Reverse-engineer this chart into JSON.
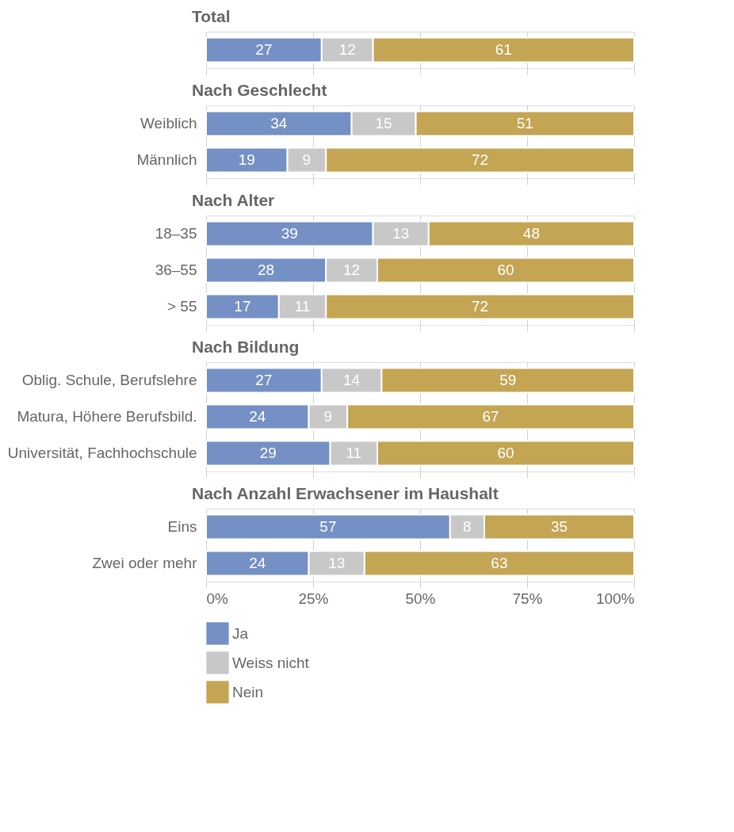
{
  "chart_data": [
    {
      "type": "bar",
      "title": "Total",
      "orientation": "horizontal",
      "stacked": true,
      "categories": [
        null
      ],
      "series": [
        {
          "color": "#7490c4",
          "values": [
            27
          ]
        },
        {
          "color": "#c8c8c8",
          "values": [
            12
          ]
        },
        {
          "color": "#c4a553",
          "values": [
            61
          ]
        }
      ],
      "xlim": [
        0,
        100
      ],
      "xticks": [
        {
          "value": 0,
          "label": null
        },
        {
          "value": 25,
          "label": null
        },
        {
          "value": 50,
          "label": null
        },
        {
          "value": 75,
          "label": null
        },
        {
          "value": 100,
          "label": null
        }
      ],
      "grid": true,
      "data_labels": true,
      "legend": false
    },
    {
      "type": "bar",
      "title": "Nach Geschlecht",
      "orientation": "horizontal",
      "stacked": true,
      "categories": [
        "Weiblich",
        "Männlich"
      ],
      "series": [
        {
          "color": "#7490c4",
          "values": [
            34,
            19
          ]
        },
        {
          "color": "#c8c8c8",
          "values": [
            15,
            9
          ]
        },
        {
          "color": "#c4a553",
          "values": [
            51,
            72
          ]
        }
      ],
      "xlim": [
        0,
        100
      ],
      "xticks": [
        {
          "value": 0,
          "label": null
        },
        {
          "value": 25,
          "label": null
        },
        {
          "value": 50,
          "label": null
        },
        {
          "value": 75,
          "label": null
        },
        {
          "value": 100,
          "label": null
        }
      ],
      "grid": true,
      "data_labels": true,
      "legend": false
    },
    {
      "type": "bar",
      "title": "Nach Alter",
      "orientation": "horizontal",
      "stacked": true,
      "categories": [
        "18–35",
        "36–55",
        "> 55"
      ],
      "series": [
        {
          "color": "#7490c4",
          "values": [
            39,
            28,
            17
          ]
        },
        {
          "color": "#c8c8c8",
          "values": [
            13,
            12,
            11
          ]
        },
        {
          "color": "#c4a553",
          "values": [
            48,
            60,
            72
          ]
        }
      ],
      "xlim": [
        0,
        100
      ],
      "xticks": [
        {
          "value": 0,
          "label": null
        },
        {
          "value": 25,
          "label": null
        },
        {
          "value": 50,
          "label": null
        },
        {
          "value": 75,
          "label": null
        },
        {
          "value": 100,
          "label": null
        }
      ],
      "grid": true,
      "data_labels": true,
      "legend": false
    },
    {
      "type": "bar",
      "title": "Nach Bildung",
      "orientation": "horizontal",
      "stacked": true,
      "categories": [
        "Oblig. Schule, Berufslehre",
        "Matura, Höhere Berufsbild.",
        "Universität, Fachhochschule"
      ],
      "series": [
        {
          "color": "#7490c4",
          "values": [
            27,
            24,
            29
          ]
        },
        {
          "color": "#c8c8c8",
          "values": [
            14,
            9,
            11
          ]
        },
        {
          "color": "#c4a553",
          "values": [
            59,
            67,
            60
          ]
        }
      ],
      "xlim": [
        0,
        100
      ],
      "xticks": [
        {
          "value": 0,
          "label": null
        },
        {
          "value": 25,
          "label": null
        },
        {
          "value": 50,
          "label": null
        },
        {
          "value": 75,
          "label": null
        },
        {
          "value": 100,
          "label": null
        }
      ],
      "grid": true,
      "data_labels": true,
      "legend": false
    },
    {
      "type": "bar",
      "title": "Nach Anzahl Erwachsener im Haushalt",
      "orientation": "horizontal",
      "stacked": true,
      "categories": [
        "Eins",
        "Zwei oder mehr"
      ],
      "series": [
        {
          "name": "Ja",
          "color": "#7490c4",
          "values": [
            57,
            24
          ]
        },
        {
          "name": "Weiss nicht",
          "color": "#c8c8c8",
          "values": [
            8,
            13
          ]
        },
        {
          "name": "Nein",
          "color": "#c4a553",
          "values": [
            35,
            63
          ]
        }
      ],
      "xlim": [
        0,
        100
      ],
      "xticks": [
        {
          "value": 0,
          "label": "0%"
        },
        {
          "value": 25,
          "label": "25%"
        },
        {
          "value": 50,
          "label": "50%"
        },
        {
          "value": 75,
          "label": "75%"
        },
        {
          "value": 100,
          "label": "100%"
        }
      ],
      "grid": true,
      "data_labels": true,
      "legend": "bottom"
    }
  ]
}
